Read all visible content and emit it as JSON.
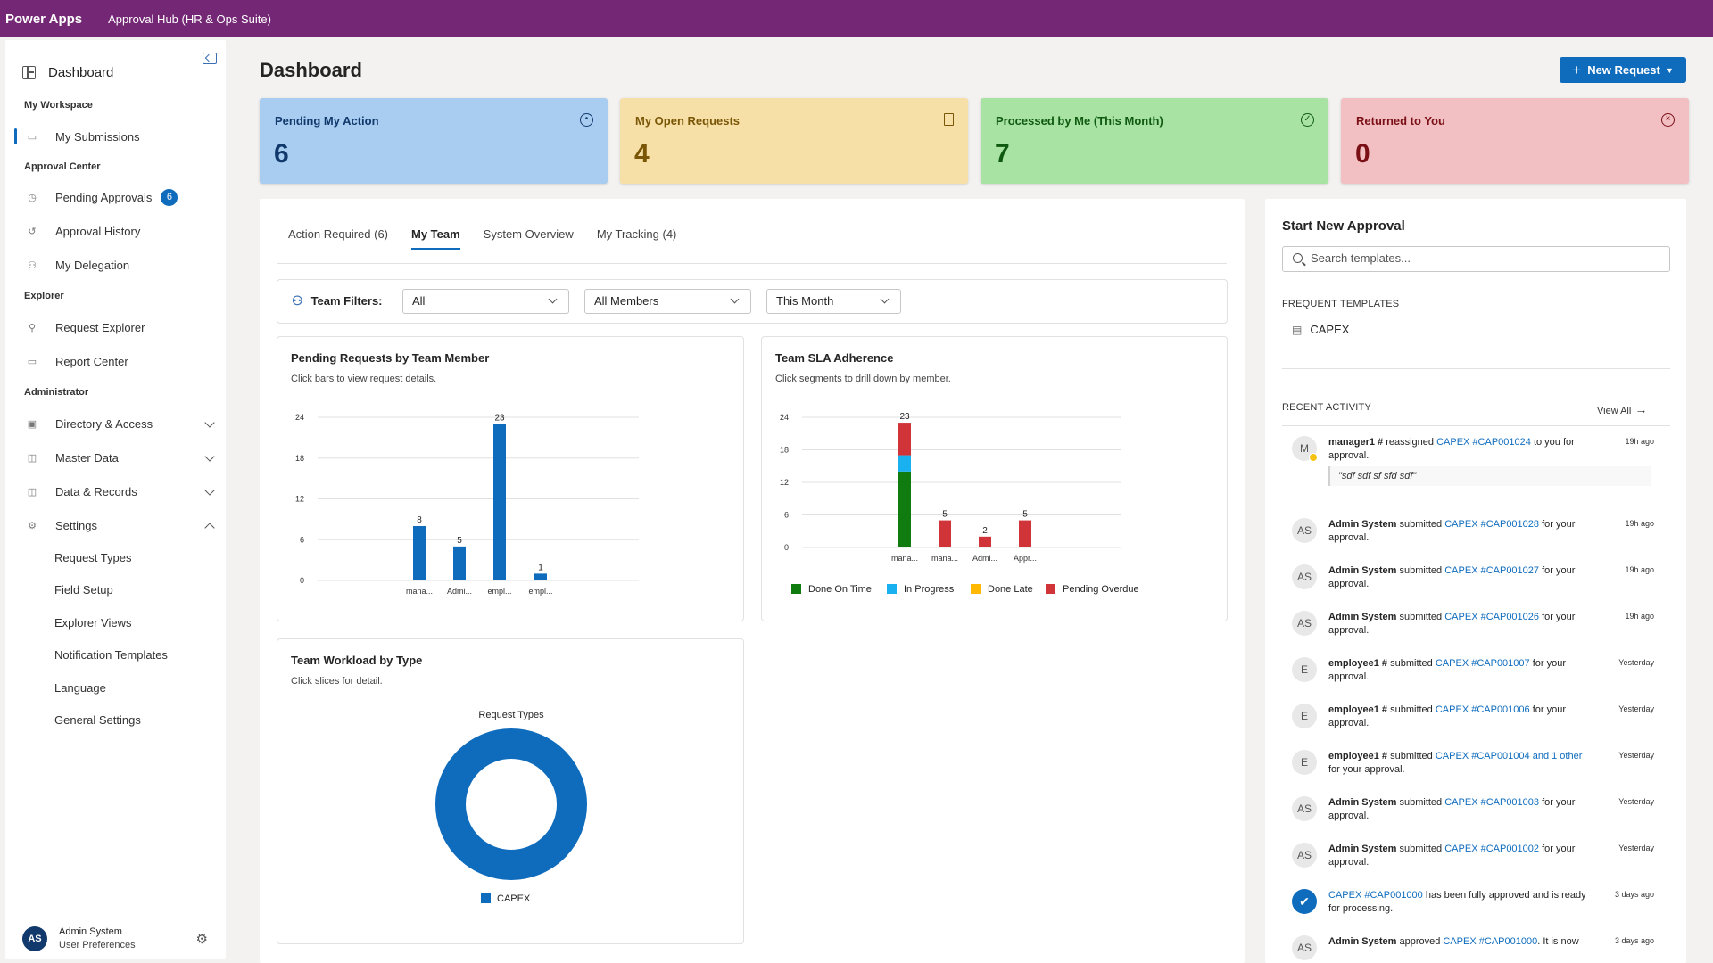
{
  "topbar": {
    "brand": "Power Apps",
    "app_title": "Approval Hub (HR & Ops Suite)"
  },
  "sidebar": {
    "dashboard_label": "Dashboard",
    "sections": {
      "workspace": "My Workspace",
      "approval_center": "Approval Center",
      "explorer": "Explorer",
      "administrator": "Administrator"
    },
    "items": {
      "my_submissions": "My Submissions",
      "pending_approvals": "Pending Approvals",
      "pending_badge": "6",
      "approval_history": "Approval History",
      "my_delegation": "My Delegation",
      "request_explorer": "Request Explorer",
      "report_center": "Report Center",
      "directory_access": "Directory & Access",
      "master_data": "Master Data",
      "data_records": "Data & Records",
      "settings": "Settings"
    },
    "settings_sub": [
      "Request Types",
      "Field Setup",
      "Explorer Views",
      "Notification Templates",
      "Language",
      "General Settings"
    ],
    "user": {
      "initials": "AS",
      "name": "Admin System",
      "link": "User Preferences"
    }
  },
  "page": {
    "title": "Dashboard",
    "new_request": "New Request"
  },
  "kpis": [
    {
      "title": "Pending My Action",
      "value": "6",
      "icon": "clock-icon",
      "bg": "#a9cdf1",
      "fg": "#11396c"
    },
    {
      "title": "My Open Requests",
      "value": "4",
      "icon": "document-icon",
      "bg": "#f7e0a7",
      "fg": "#7a5607"
    },
    {
      "title": "Processed by Me (This Month)",
      "value": "7",
      "icon": "check-circle-icon",
      "bg": "#a8e3a4",
      "fg": "#0f5a10"
    },
    {
      "title": "Returned to You",
      "value": "0",
      "icon": "close-circle-icon",
      "bg": "#f2c0c3",
      "fg": "#7a1016"
    }
  ],
  "tabs": [
    "Action Required (6)",
    "My Team",
    "System Overview",
    "My Tracking (4)"
  ],
  "active_tab": "My Team",
  "filters": {
    "label": "Team Filters:",
    "type": "All",
    "members": "All Members",
    "period": "This Month"
  },
  "chart_data": [
    {
      "type": "bar",
      "title": "Pending Requests by Team Member",
      "subtitle": "Click bars to view request details.",
      "categories": [
        "mana...",
        "Admi...",
        "empl...",
        "empl..."
      ],
      "values": [
        8,
        5,
        23,
        1
      ],
      "ylim": [
        0,
        24
      ],
      "yticks": [
        0,
        6,
        12,
        18,
        24
      ],
      "color": "#0f6cbd"
    },
    {
      "type": "bar",
      "stacked": true,
      "title": "Team SLA Adherence",
      "subtitle": "Click segments to drill down by member.",
      "categories": [
        "mana...",
        "mana...",
        "Admi...",
        "Appr..."
      ],
      "totals": [
        23,
        5,
        2,
        5
      ],
      "ylim": [
        0,
        24
      ],
      "yticks": [
        0,
        6,
        12,
        18,
        24
      ],
      "series": [
        {
          "name": "Done On Time",
          "color": "#107c10",
          "values": [
            14,
            0,
            0,
            0
          ]
        },
        {
          "name": "In Progress",
          "color": "#1ab1f0",
          "values": [
            3,
            0,
            0,
            0
          ]
        },
        {
          "name": "Done Late",
          "color": "#ffb900",
          "values": [
            0,
            0,
            0,
            0
          ]
        },
        {
          "name": "Pending Overdue",
          "color": "#d13438",
          "values": [
            6,
            5,
            2,
            5
          ]
        }
      ],
      "legend": "bottom"
    },
    {
      "type": "pie",
      "title": "Team Workload by Type",
      "subtitle": "Click slices for detail.",
      "chart_title": "Request Types",
      "labels": [
        "CAPEX"
      ],
      "values": [
        1
      ],
      "colors": [
        "#0f6cbd"
      ],
      "legend": "bottom"
    }
  ],
  "right_panel": {
    "title": "Start New Approval",
    "search_placeholder": "Search templates...",
    "frequent_label": "FREQUENT TEMPLATES",
    "template": "CAPEX",
    "recent_label": "RECENT ACTIVITY",
    "view_all": "View All",
    "activities": [
      {
        "initials": "M",
        "actor": "manager1 #",
        "verb": " reassigned ",
        "link": "CAPEX #CAP001024",
        "rest": " to you for approval.",
        "time": "19h ago",
        "quote": "\"sdf sdf sf sfd sdf\""
      },
      {
        "initials": "AS",
        "actor": "Admin System",
        "verb": " submitted ",
        "link": "CAPEX #CAP001028",
        "rest": " for your approval.",
        "time": "19h ago"
      },
      {
        "initials": "AS",
        "actor": "Admin System",
        "verb": " submitted ",
        "link": "CAPEX #CAP001027",
        "rest": " for your approval.",
        "time": "19h ago"
      },
      {
        "initials": "AS",
        "actor": "Admin System",
        "verb": " submitted ",
        "link": "CAPEX #CAP001026",
        "rest": " for your approval.",
        "time": "19h ago"
      },
      {
        "initials": "E",
        "actor": "employee1 #",
        "verb": " submitted ",
        "link": "CAPEX #CAP001007",
        "rest": " for your approval.",
        "time": "Yesterday"
      },
      {
        "initials": "E",
        "actor": "employee1 #",
        "verb": " submitted ",
        "link": "CAPEX #CAP001006",
        "rest": " for your approval.",
        "time": "Yesterday"
      },
      {
        "initials": "E",
        "actor": "employee1 #",
        "verb": " submitted ",
        "link": "CAPEX #CAP001004 and 1 other",
        "rest": " for your approval.",
        "time": "Yesterday"
      },
      {
        "initials": "AS",
        "actor": "Admin System",
        "verb": " submitted ",
        "link": "CAPEX #CAP001003",
        "rest": " for your approval.",
        "time": "Yesterday"
      },
      {
        "initials": "AS",
        "actor": "Admin System",
        "verb": " submitted ",
        "link": "CAPEX #CAP001002",
        "rest": " for your approval.",
        "time": "Yesterday"
      },
      {
        "initials": "",
        "actor": "",
        "verb": "",
        "link": "CAPEX #CAP001000",
        "rest": " has been fully approved and is ready for processing.",
        "time": "3 days ago",
        "icon": "approved-badge-icon"
      },
      {
        "initials": "AS",
        "actor": "Admin System",
        "verb": " approved ",
        "link": "CAPEX #CAP001000",
        "rest": ". It is now",
        "time": "3 days ago"
      }
    ]
  }
}
